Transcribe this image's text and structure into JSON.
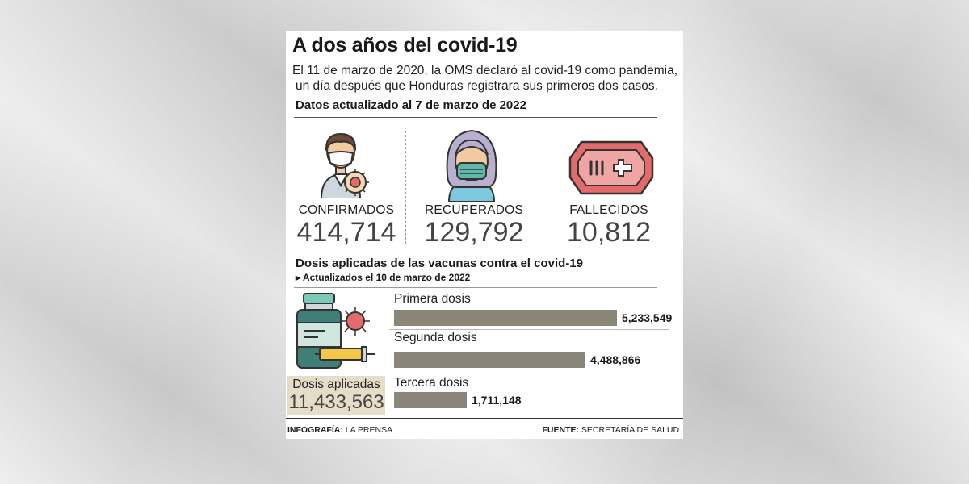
{
  "title": "A dos años del covid-19",
  "subtitle_line1": "El 11 de marzo de 2020, la OMS declaró al covid-19 como pandemia,",
  "subtitle_line2": "un día después que Honduras registrara sus primeros dos casos.",
  "section1_title": "Datos actualizado al 7 de marzo de 2022",
  "stats": [
    {
      "label": "CONFIRMADOS",
      "value": "414,714",
      "icon": "person-virus-icon"
    },
    {
      "label": "RECUPERADOS",
      "value": "129,792",
      "icon": "person-mask-icon"
    },
    {
      "label": "FALLECIDOS",
      "value": "10,812",
      "icon": "coffin-icon"
    }
  ],
  "section2_title": "Dosis aplicadas de las vacunas contra el covid-19",
  "section2_subtitle": "Actualizados el 10 de marzo de 2022",
  "total_doses": {
    "label": "Dosis aplicadas",
    "value": "11,433,563"
  },
  "chart_data": {
    "type": "bar",
    "orientation": "horizontal",
    "categories": [
      "Primera dosis",
      "Segunda dosis",
      "Tercera dosis"
    ],
    "values": [
      5233549,
      4488866,
      1711148
    ],
    "value_labels": [
      "5,233,549",
      "4,488,866",
      "1,711,148"
    ],
    "title": "Dosis aplicadas de las vacunas contra el covid-19",
    "bar_color": "#8a8579"
  },
  "footer": {
    "left_label": "INFOGRAFÍA:",
    "left_value": "LA PRENSA",
    "right_label": "FUENTE:",
    "right_value": "SECRETARÍA DE SALUD."
  },
  "colors": {
    "accent_red": "#e36b6b",
    "mask_teal": "#5fb8a8",
    "box_beige": "#e5ddc8"
  }
}
